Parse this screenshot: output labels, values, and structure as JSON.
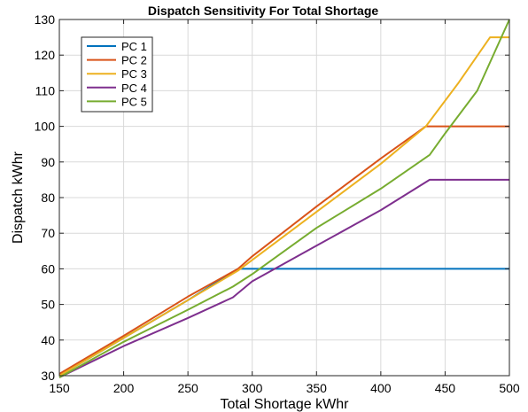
{
  "chart_data": {
    "type": "line",
    "title": "Dispatch Sensitivity For Total Shortage",
    "xlabel": "Total Shortage kWhr",
    "ylabel": "Dispatch kWhr",
    "xlim": [
      150,
      500
    ],
    "ylim": [
      30,
      130
    ],
    "xticks": [
      150,
      200,
      250,
      300,
      350,
      400,
      450,
      500
    ],
    "yticks": [
      30,
      40,
      50,
      60,
      70,
      80,
      90,
      100,
      110,
      120,
      130
    ],
    "grid": true,
    "legend_position": "top-left",
    "series": [
      {
        "name": "PC 1",
        "color": "#0072BD",
        "x": [
          150,
          200,
          250,
          289,
          300,
          350,
          400,
          450,
          500
        ],
        "y": [
          30,
          40.6,
          51.2,
          60,
          60,
          60,
          60,
          60,
          60
        ]
      },
      {
        "name": "PC 2",
        "color": "#D95319",
        "x": [
          150,
          200,
          250,
          289,
          300,
          350,
          400,
          435,
          450,
          500
        ],
        "y": [
          30.5,
          41.2,
          52.2,
          60,
          63.5,
          77.5,
          91,
          100,
          100,
          100
        ]
      },
      {
        "name": "PC 3",
        "color": "#EDB120",
        "x": [
          150,
          200,
          250,
          289,
          300,
          350,
          400,
          435,
          460,
          485,
          500
        ],
        "y": [
          30,
          40.6,
          51.2,
          59.5,
          62.5,
          76,
          89.5,
          100,
          112,
          125,
          125
        ]
      },
      {
        "name": "PC 4",
        "color": "#7E2F8E",
        "x": [
          150,
          200,
          250,
          285,
          300,
          350,
          400,
          438,
          450,
          500
        ],
        "y": [
          29.5,
          38.3,
          46.2,
          52,
          56.5,
          66.5,
          76.5,
          85,
          85,
          85
        ]
      },
      {
        "name": "PC 5",
        "color": "#77AC30",
        "x": [
          150,
          200,
          250,
          285,
          300,
          350,
          400,
          438,
          450,
          475,
          500
        ],
        "y": [
          29.5,
          39.5,
          48.5,
          55,
          58.5,
          71.5,
          82.5,
          92,
          98,
          110,
          130
        ]
      }
    ]
  }
}
